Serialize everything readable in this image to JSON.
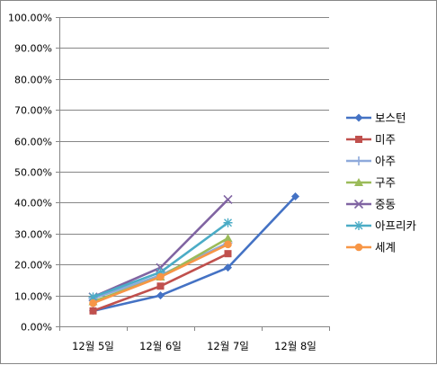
{
  "chart_data": {
    "type": "line",
    "title": "",
    "xlabel": "",
    "ylabel": "",
    "categories": [
      "12월 5일",
      "12월 6일",
      "12월 7일",
      "12월 8일"
    ],
    "ylim": [
      0,
      100
    ],
    "y_ticks": [
      "0.00%",
      "10.00%",
      "20.00%",
      "30.00%",
      "40.00%",
      "50.00%",
      "60.00%",
      "70.00%",
      "80.00%",
      "90.00%",
      "100.00%"
    ],
    "y_tick_values": [
      0,
      10,
      20,
      30,
      40,
      50,
      60,
      70,
      80,
      90,
      100
    ],
    "grid": true,
    "legend_position": "right",
    "series": [
      {
        "name": "보스턴",
        "color": "#4472C4",
        "marker": "diamond",
        "values": [
          5.0,
          10.0,
          19.0,
          42.0
        ]
      },
      {
        "name": "미주",
        "color": "#C0504D",
        "marker": "square",
        "values": [
          5.0,
          13.0,
          23.5,
          null
        ]
      },
      {
        "name": "아주",
        "color": "#8EA9DB",
        "marker": "plus",
        "values": [
          9.0,
          16.5,
          27.0,
          null
        ]
      },
      {
        "name": "구주",
        "color": "#9BBB59",
        "marker": "triangle",
        "values": [
          8.0,
          16.0,
          28.5,
          null
        ]
      },
      {
        "name": "중동",
        "color": "#8064A2",
        "marker": "x",
        "values": [
          9.5,
          19.0,
          41.0,
          null
        ]
      },
      {
        "name": "아프리카",
        "color": "#4BACC6",
        "marker": "star",
        "values": [
          9.5,
          17.5,
          33.5,
          null
        ]
      },
      {
        "name": "세계",
        "color": "#F79646",
        "marker": "circle",
        "values": [
          7.5,
          16.0,
          26.5,
          null
        ]
      }
    ]
  }
}
